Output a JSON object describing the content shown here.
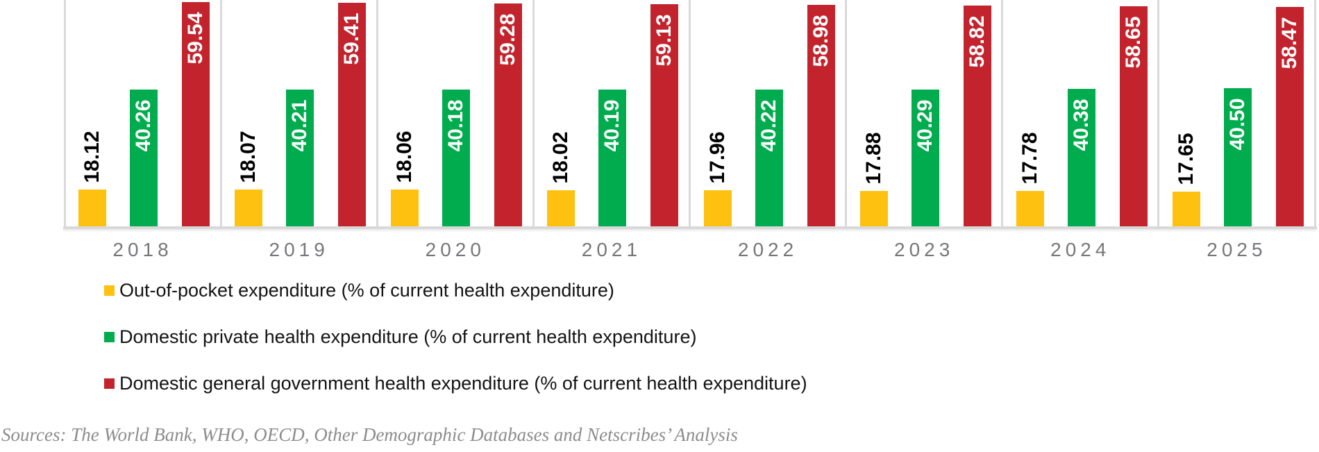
{
  "chart_data": {
    "type": "bar",
    "categories": [
      "2018",
      "2019",
      "2020",
      "2021",
      "2022",
      "2023",
      "2024",
      "2025"
    ],
    "series": [
      {
        "key": "out-of-pocket",
        "name": "Out-of-pocket expenditure (% of current health expenditure)",
        "color": "#FEC110",
        "label_color": "#000000",
        "label_placement": "above",
        "values": [
          18.12,
          18.07,
          18.06,
          18.02,
          17.96,
          17.88,
          17.78,
          17.65
        ]
      },
      {
        "key": "domestic-private",
        "name": "Domestic private health expenditure (% of current health expenditure)",
        "color": "#00AC4D",
        "label_color": "#FFFFFF",
        "label_placement": "inside",
        "values": [
          40.26,
          40.21,
          40.18,
          40.19,
          40.22,
          40.29,
          40.38,
          40.5
        ]
      },
      {
        "key": "domestic-government",
        "name": "Domestic general government health expenditure (% of current health expenditure)",
        "color": "#C2232C",
        "label_color": "#FFFFFF",
        "label_placement": "inside",
        "values": [
          59.54,
          59.41,
          59.28,
          59.13,
          58.98,
          58.82,
          58.65,
          58.47
        ]
      }
    ],
    "title": "",
    "xlabel": "",
    "ylabel": "",
    "ylim": [
      10,
      60
    ],
    "grid": false,
    "value_labels_rotated": true,
    "legend_position": "bottom-left",
    "axis_label_color": "#77777B",
    "panel_border_color": "#DADADA"
  },
  "legend": {
    "item_1": "Out-of-pocket expenditure (% of current health expenditure)",
    "item_2": "Domestic private health expenditure (% of current health expenditure)",
    "item_3": "Domestic general government health expenditure (% of current health expenditure)"
  },
  "footer": {
    "sources_note": "Sources: The World Bank, WHO, OECD, Other Demographic Databases and Netscribes’ Analysis"
  }
}
